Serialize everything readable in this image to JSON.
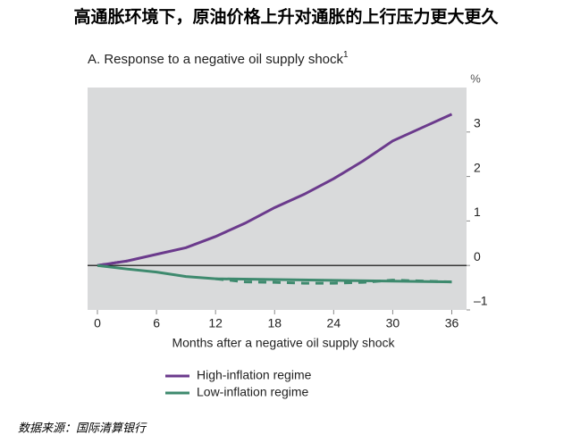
{
  "header": "高通胀环境下，原油价格上升对通胀的上行压力更大更久",
  "chart_data": {
    "type": "line",
    "title": "A. Response to a negative oil supply shock",
    "title_note": "1",
    "y_unit": "%",
    "xlabel": "Months after a negative oil supply shock",
    "x": [
      0,
      3,
      6,
      9,
      12,
      15,
      18,
      21,
      24,
      27,
      30,
      33,
      36
    ],
    "xlim": [
      -1,
      37.5
    ],
    "xticks": [
      0,
      6,
      12,
      18,
      24,
      30,
      36
    ],
    "ylim": [
      -1,
      4
    ],
    "yticks": [
      {
        "value": -1,
        "label": "–1"
      },
      0,
      1,
      2,
      3
    ],
    "series": [
      {
        "name": "High-inflation regime",
        "color": "#6b3a8c",
        "dashed_x": [
          0,
          3
        ],
        "values": [
          0,
          0.1,
          0.25,
          0.4,
          0.65,
          0.95,
          1.3,
          1.6,
          1.95,
          2.35,
          2.8,
          3.1,
          3.4
        ]
      },
      {
        "name": "Low-inflation regime",
        "color": "#3e8a6e",
        "dashed_x": [
          12,
          36
        ],
        "values": [
          0,
          -0.08,
          -0.15,
          -0.25,
          -0.3,
          -0.37,
          -0.38,
          -0.4,
          -0.4,
          -0.38,
          -0.33,
          -0.35,
          -0.37
        ]
      }
    ]
  },
  "source": "数据来源：国际清算银行"
}
